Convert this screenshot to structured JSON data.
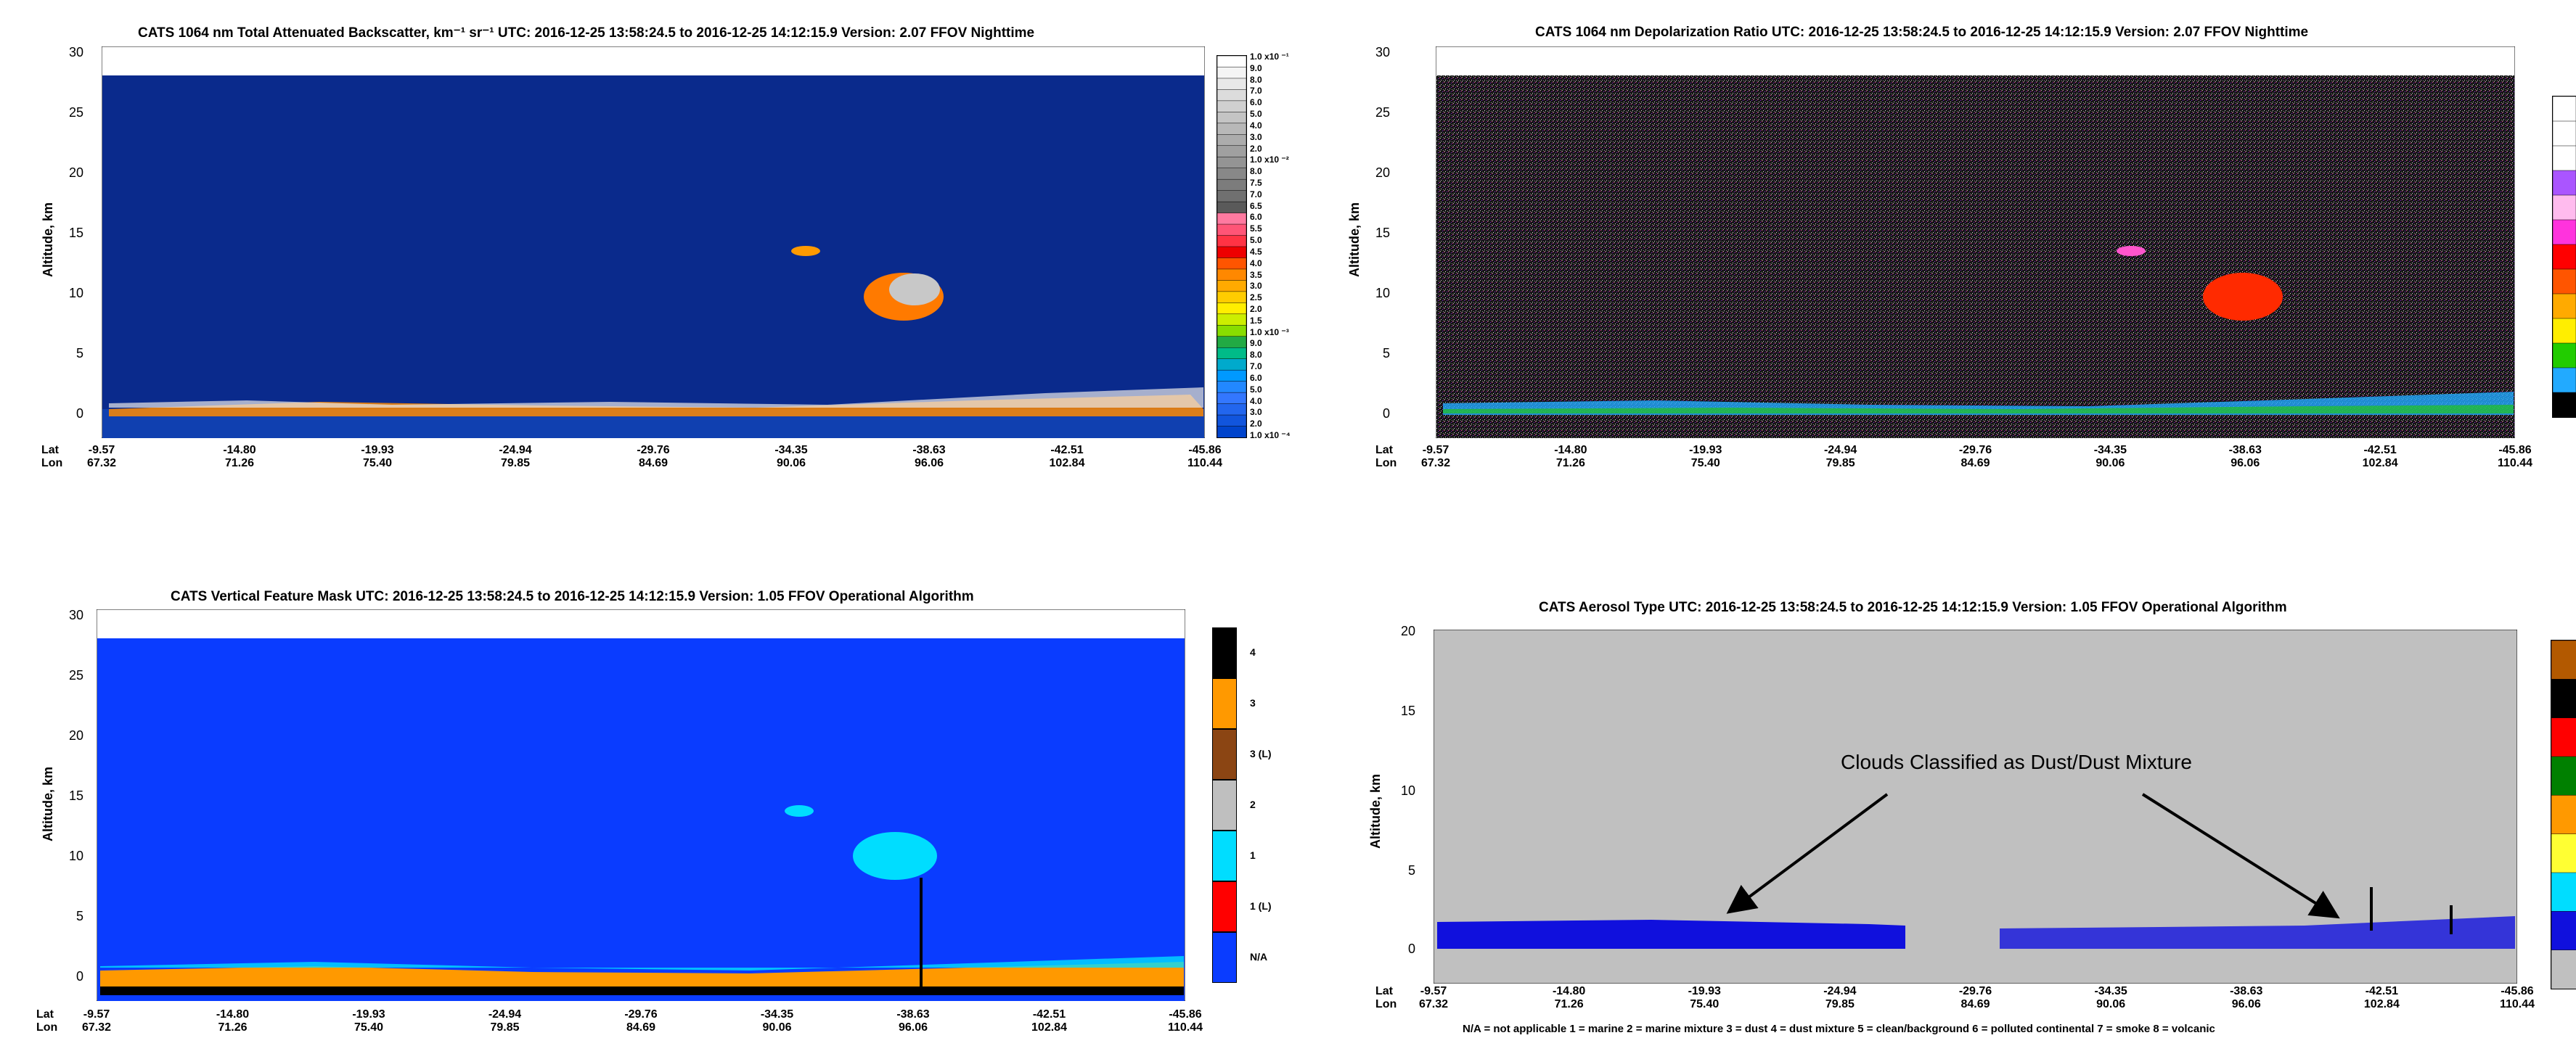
{
  "chart_data": [
    {
      "type": "heatmap",
      "title": "CATS  1064 nm Total Attenuated Backscatter, km⁻¹ sr⁻¹    UTC:  2016-12-25 13:58:24.5  to  2016-12-25 14:12:15.9    Version: 2.07  FFOV  Nighttime",
      "ylabel": "Altitude, km",
      "ylim": [
        -2,
        30
      ],
      "yticks": [
        "30",
        "25",
        "20",
        "15",
        "10",
        "5",
        "0"
      ],
      "lat": [
        "-9.57",
        "-14.80",
        "-19.93",
        "-24.94",
        "-29.76",
        "-34.35",
        "-38.63",
        "-42.51",
        "-45.86"
      ],
      "lon": [
        "67.32",
        "71.26",
        "75.40",
        "79.85",
        "84.69",
        "90.06",
        "96.06",
        "102.84",
        "110.44"
      ],
      "row_labels": [
        "Lat",
        "Lon"
      ],
      "colorbar_labels": [
        "1.0 x10 ⁻¹",
        "9.0",
        "8.0",
        "7.0",
        "6.0",
        "5.0",
        "4.0",
        "3.0",
        "2.0",
        "1.0 x10 ⁻²",
        "8.0",
        "7.5",
        "7.0",
        "6.5",
        "6.0",
        "5.5",
        "5.0",
        "4.5",
        "4.0",
        "3.5",
        "3.0",
        "2.5",
        "2.0",
        "1.5",
        "1.0 x10 ⁻³",
        "9.0",
        "8.0",
        "7.0",
        "6.0",
        "5.0",
        "4.0",
        "3.0",
        "2.0",
        "1.0 x10 ⁻⁴"
      ],
      "colorbar_colors": [
        "#ffffff",
        "#f4f4f4",
        "#e8e8e8",
        "#dcdcdc",
        "#d0d0d0",
        "#c4c4c4",
        "#b8b8b8",
        "#acacac",
        "#a0a0a0",
        "#949494",
        "#888888",
        "#7c7c7c",
        "#707070",
        "#5a5a5a",
        "#ff7aa0",
        "#ff5577",
        "#ff3344",
        "#ee0000",
        "#ff5500",
        "#ff8800",
        "#ffaa00",
        "#ffcc00",
        "#ffee00",
        "#ccee00",
        "#88dd00",
        "#22aa44",
        "#00bb88",
        "#00aacc",
        "#0099ff",
        "#2288ff",
        "#3377ff",
        "#2266ee",
        "#1155dd",
        "#0044cc"
      ],
      "background_color": "#0a2a8c"
    },
    {
      "type": "heatmap",
      "title": "CATS  1064 nm Depolarization Ratio    UTC:  2016-12-25 13:58:24.5  to  2016-12-25 14:12:15.9    Version: 2.07  FFOV  Nighttime",
      "ylabel": "Altitude, km",
      "ylim": [
        -2,
        30
      ],
      "yticks": [
        "30",
        "25",
        "20",
        "15",
        "10",
        "5",
        "0"
      ],
      "lat": [
        "-9.57",
        "-14.80",
        "-19.93",
        "-24.94",
        "-29.76",
        "-34.35",
        "-38.63",
        "-42.51",
        "-45.86"
      ],
      "lon": [
        "67.32",
        "71.26",
        "75.40",
        "79.85",
        "84.69",
        "90.06",
        "96.06",
        "102.84",
        "110.44"
      ],
      "row_labels": [
        "Lat",
        "Lon"
      ],
      "colorbar_colors": [
        "#ffffff",
        "#ffffff",
        "#ffffff",
        "#aa55ff",
        "#ffbbee",
        "#ff33dd",
        "#ff0000",
        "#ff5500",
        "#ffaa00",
        "#ffee00",
        "#22cc00",
        "#22aaff",
        "#000000"
      ],
      "background_color": "#111111"
    },
    {
      "type": "heatmap",
      "title": "CATS  Vertical Feature Mask    UTC:  2016-12-25   13:58:24.5  to  2016-12-25   14:12:15.9    Version: 1.05  FFOV  Operational Algorithm",
      "ylabel": "Altitude, km",
      "ylim": [
        -2,
        30
      ],
      "yticks": [
        "30",
        "25",
        "20",
        "15",
        "10",
        "5",
        "0"
      ],
      "lat": [
        "-9.57",
        "-14.80",
        "-19.93",
        "-24.94",
        "-29.76",
        "-34.35",
        "-38.63",
        "-42.51",
        "-45.86"
      ],
      "lon": [
        "67.32",
        "71.26",
        "75.40",
        "79.85",
        "84.69",
        "90.06",
        "96.06",
        "102.84",
        "110.44"
      ],
      "row_labels": [
        "Lat",
        "Lon"
      ],
      "colorbar": [
        {
          "label": "4",
          "color": "#000000"
        },
        {
          "label": "3",
          "color": "#ff9900"
        },
        {
          "label": "3 (L)",
          "color": "#8b4513"
        },
        {
          "label": "2",
          "color": "#bfbfbf"
        },
        {
          "label": "1",
          "color": "#00ddff"
        },
        {
          "label": "1 (L)",
          "color": "#ff0000"
        },
        {
          "label": "N/A",
          "color": "#0a3cff"
        }
      ],
      "background_color": "#0a3cff"
    },
    {
      "type": "heatmap",
      "title": "CATS  Aerosol Type    UTC:  2016-12-25   13:58:24.5  to  2016-12-25   14:12:15.9    Version: 1.05  FFOV  Operational Algorithm",
      "ylabel": "Altitude, km",
      "ylim": [
        -2,
        20
      ],
      "yticks": [
        "20",
        "15",
        "10",
        "5",
        "0"
      ],
      "lat": [
        "-9.57",
        "-14.80",
        "-19.93",
        "-24.94",
        "-29.76",
        "-34.35",
        "-38.63",
        "-42.51",
        "-45.86"
      ],
      "lon": [
        "67.32",
        "71.26",
        "75.40",
        "79.85",
        "84.69",
        "90.06",
        "96.06",
        "102.84",
        "110.44"
      ],
      "row_labels": [
        "Lat",
        "Lon"
      ],
      "colorbar_colors": [
        "#b35900",
        "#000000",
        "#ff0000",
        "#008000",
        "#ff9900",
        "#ffff33",
        "#00ddff",
        "#1010dd",
        "#c0c0c0"
      ],
      "legend_text": "N/A = not applicable    1 = marine    2 = marine mixture    3 = dust    4 = dust mixture    5 = clean/background    6 = polluted continental    7 = smoke    8 = volcanic",
      "annotation": "Clouds Classified as Dust/Dust Mixture",
      "background_color": "#c0c0c0"
    }
  ]
}
